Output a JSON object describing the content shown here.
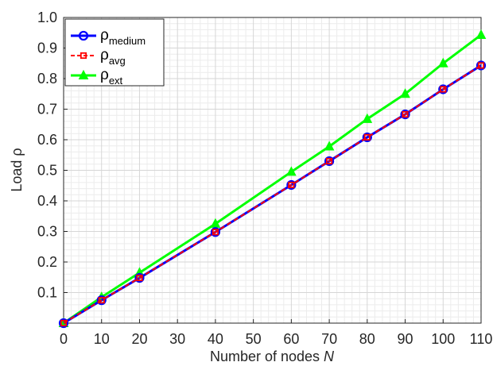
{
  "chart_data": {
    "type": "line",
    "xlabel": "Number of nodes",
    "xlabel_var": "N",
    "ylabel": "Load ρ",
    "xlim": [
      0,
      110
    ],
    "ylim": [
      0,
      1.0
    ],
    "x_ticks": [
      "0",
      "10",
      "20",
      "30",
      "40",
      "50",
      "60",
      "70",
      "80",
      "90",
      "100",
      "110"
    ],
    "y_ticks": [
      "0.1",
      "0.2",
      "0.3",
      "0.4",
      "0.5",
      "0.6",
      "0.7",
      "0.8",
      "0.9",
      "1.0"
    ],
    "grid": true,
    "minor_grid": true,
    "legend_position": "top-left",
    "series": [
      {
        "name": "ρ",
        "subscript": "medium",
        "color": "#0000ff",
        "marker": "circle",
        "line": "solid",
        "x": [
          0,
          10,
          20,
          40,
          60,
          70,
          80,
          90,
          100,
          110
        ],
        "y": [
          0.0,
          0.075,
          0.148,
          0.298,
          0.452,
          0.53,
          0.608,
          0.683,
          0.765,
          0.843
        ]
      },
      {
        "name": "ρ",
        "subscript": "avg",
        "color": "#ff0000",
        "marker": "square",
        "line": "dashed",
        "x": [
          0,
          10,
          20,
          40,
          60,
          70,
          80,
          90,
          100,
          110
        ],
        "y": [
          0.0,
          0.075,
          0.148,
          0.298,
          0.452,
          0.53,
          0.608,
          0.683,
          0.765,
          0.843
        ]
      },
      {
        "name": "ρ",
        "subscript": "ext",
        "color": "#00ff00",
        "marker": "triangle",
        "line": "solid",
        "x": [
          0,
          10,
          20,
          40,
          60,
          70,
          80,
          90,
          100,
          110
        ],
        "y": [
          0.0,
          0.085,
          0.165,
          0.325,
          0.495,
          0.578,
          0.668,
          0.75,
          0.85,
          0.943
        ]
      }
    ]
  }
}
